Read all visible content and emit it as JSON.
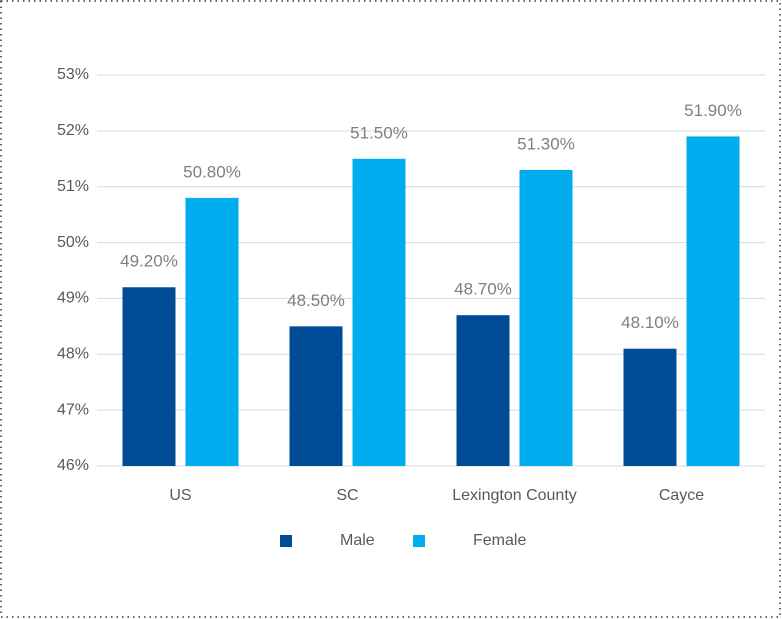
{
  "chart_data": {
    "type": "bar",
    "categories": [
      "US",
      "SC",
      "Lexington County",
      "Cayce"
    ],
    "series": [
      {
        "name": "Male",
        "color": "#004b96",
        "values": [
          49.2,
          48.5,
          48.7,
          48.1
        ],
        "value_labels": [
          "49.20%",
          "48.50%",
          "48.70%",
          "48.10%"
        ]
      },
      {
        "name": "Female",
        "color": "#00adee",
        "values": [
          50.8,
          51.5,
          51.3,
          51.9
        ],
        "value_labels": [
          "50.80%",
          "51.50%",
          "51.30%",
          "51.90%"
        ]
      }
    ],
    "ylim": [
      46,
      53
    ],
    "yticks": [
      {
        "value": 46,
        "label": "46%"
      },
      {
        "value": 47,
        "label": "47%"
      },
      {
        "value": 48,
        "label": "48%"
      },
      {
        "value": 49,
        "label": "49%"
      },
      {
        "value": 50,
        "label": "50%"
      },
      {
        "value": 51,
        "label": "51%"
      },
      {
        "value": 52,
        "label": "52%"
      },
      {
        "value": 53,
        "label": "53%"
      }
    ],
    "grid": true,
    "legend": "bottom"
  }
}
